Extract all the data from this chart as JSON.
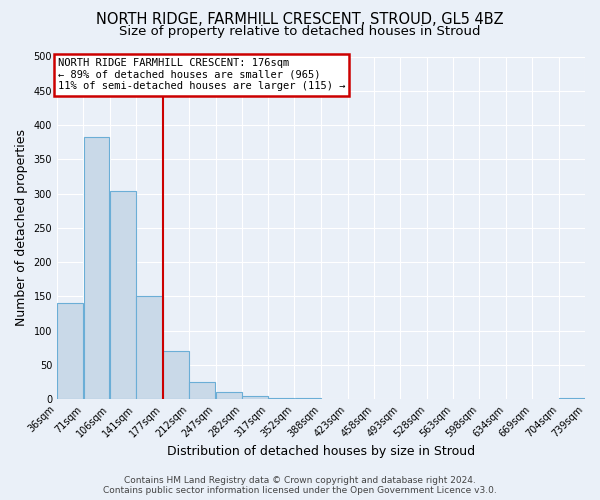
{
  "title": "NORTH RIDGE, FARMHILL CRESCENT, STROUD, GL5 4BZ",
  "subtitle": "Size of property relative to detached houses in Stroud",
  "xlabel": "Distribution of detached houses by size in Stroud",
  "ylabel": "Number of detached properties",
  "bin_edges": [
    36,
    71,
    106,
    141,
    177,
    212,
    247,
    282,
    317,
    352,
    388,
    423,
    458,
    493,
    528,
    563,
    598,
    634,
    669,
    704,
    739
  ],
  "bar_heights": [
    140,
    383,
    304,
    150,
    70,
    25,
    10,
    5,
    2,
    1,
    0,
    0,
    0,
    0,
    0,
    0,
    0,
    0,
    0,
    1
  ],
  "tick_labels": [
    "36sqm",
    "71sqm",
    "106sqm",
    "141sqm",
    "177sqm",
    "212sqm",
    "247sqm",
    "282sqm",
    "317sqm",
    "352sqm",
    "388sqm",
    "423sqm",
    "458sqm",
    "493sqm",
    "528sqm",
    "563sqm",
    "598sqm",
    "634sqm",
    "669sqm",
    "704sqm",
    "739sqm"
  ],
  "bar_color": "#c9d9e8",
  "bar_edge_color": "#6baed6",
  "vline_x": 177,
  "vline_color": "#cc0000",
  "annotation_title": "NORTH RIDGE FARMHILL CRESCENT: 176sqm",
  "annotation_line2": "← 89% of detached houses are smaller (965)",
  "annotation_line3": "11% of semi-detached houses are larger (115) →",
  "annotation_box_color": "#ffffff",
  "annotation_box_edge": "#cc0000",
  "ylim": [
    0,
    500
  ],
  "yticks": [
    0,
    50,
    100,
    150,
    200,
    250,
    300,
    350,
    400,
    450,
    500
  ],
  "footer1": "Contains HM Land Registry data © Crown copyright and database right 2024.",
  "footer2": "Contains public sector information licensed under the Open Government Licence v3.0.",
  "bg_color": "#eaf0f8",
  "plot_bg_color": "#eaf0f8",
  "grid_color": "#ffffff",
  "title_fontsize": 10.5,
  "subtitle_fontsize": 9.5,
  "axis_label_fontsize": 9,
  "tick_fontsize": 7,
  "footer_fontsize": 6.5,
  "annot_fontsize": 7.5
}
